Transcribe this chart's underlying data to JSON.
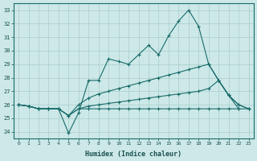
{
  "xlabel": "Humidex (Indice chaleur)",
  "bg_color": "#cce8e8",
  "grid_color": "#aacccc",
  "line_color": "#1a6b6b",
  "xlim": [
    -0.5,
    23.5
  ],
  "ylim": [
    23.5,
    33.5
  ],
  "yticks": [
    24,
    25,
    26,
    27,
    28,
    29,
    30,
    31,
    32,
    33
  ],
  "xticks": [
    0,
    1,
    2,
    3,
    4,
    5,
    6,
    7,
    8,
    9,
    10,
    11,
    12,
    13,
    14,
    15,
    16,
    17,
    18,
    19,
    20,
    21,
    22,
    23
  ],
  "line1_x": [
    0,
    1,
    2,
    3,
    4,
    5,
    6,
    7,
    8,
    9,
    10,
    11,
    12,
    13,
    14,
    15,
    16,
    17,
    18,
    19,
    20,
    21,
    22
  ],
  "line1_y": [
    26.0,
    25.9,
    25.7,
    25.7,
    25.7,
    23.9,
    25.4,
    27.8,
    27.8,
    29.4,
    29.2,
    29.0,
    29.7,
    30.4,
    29.7,
    31.1,
    32.2,
    33.0,
    31.8,
    29.0,
    27.8,
    26.7,
    25.7
  ],
  "line2_x": [
    0,
    1,
    2,
    3,
    4,
    5,
    6,
    7,
    8,
    9,
    10,
    11,
    12,
    13,
    14,
    15,
    16,
    17,
    18,
    19,
    20,
    21,
    22,
    23
  ],
  "line2_y": [
    26.0,
    25.9,
    25.7,
    25.7,
    25.7,
    25.2,
    26.0,
    26.5,
    26.8,
    27.0,
    27.2,
    27.4,
    27.6,
    27.8,
    28.0,
    28.2,
    28.4,
    28.6,
    28.8,
    29.0,
    27.8,
    26.7,
    26.0,
    25.7
  ],
  "line3_x": [
    0,
    1,
    2,
    3,
    4,
    5,
    6,
    7,
    8,
    9,
    10,
    11,
    12,
    13,
    14,
    15,
    16,
    17,
    18,
    19,
    20,
    21,
    22,
    23
  ],
  "line3_y": [
    26.0,
    25.9,
    25.7,
    25.7,
    25.7,
    25.2,
    25.7,
    25.9,
    26.0,
    26.1,
    26.2,
    26.3,
    26.4,
    26.5,
    26.6,
    26.7,
    26.8,
    26.9,
    27.0,
    27.2,
    27.8,
    26.7,
    26.0,
    25.7
  ],
  "line4_x": [
    0,
    1,
    2,
    3,
    4,
    5,
    6,
    7,
    8,
    9,
    10,
    11,
    12,
    13,
    14,
    15,
    16,
    17,
    18,
    19,
    20,
    21,
    22,
    23
  ],
  "line4_y": [
    26.0,
    25.9,
    25.7,
    25.7,
    25.7,
    25.2,
    25.7,
    25.7,
    25.7,
    25.7,
    25.7,
    25.7,
    25.7,
    25.7,
    25.7,
    25.7,
    25.7,
    25.7,
    25.7,
    25.7,
    25.7,
    25.7,
    25.7,
    25.7
  ]
}
